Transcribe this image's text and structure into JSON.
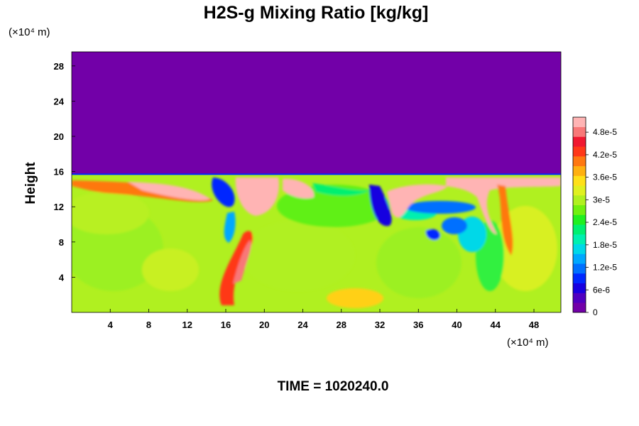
{
  "chart_data": {
    "type": "heatmap",
    "title": "H2S-g Mixing Ratio [kg/kg]",
    "xlabel": "",
    "ylabel": "Height",
    "x_unit": "(×10⁴ m)",
    "y_unit": "(×10⁴ m)",
    "xlim": [
      0,
      50.8
    ],
    "ylim": [
      0,
      29.6
    ],
    "x_ticks": [
      4,
      8,
      12,
      16,
      20,
      24,
      28,
      32,
      36,
      40,
      44,
      48
    ],
    "y_ticks": [
      4,
      8,
      12,
      16,
      20,
      24,
      28
    ],
    "colorbar": {
      "min": 0,
      "max": 5.2e-05,
      "tick_values": [
        0,
        6e-06,
        1.2e-05,
        1.8e-05,
        2.4e-05,
        3e-05,
        3.6e-05,
        4.2e-05,
        4.8e-05
      ],
      "tick_labels": [
        "0",
        "6e-6",
        "1.2e-5",
        "1.8e-5",
        "2.4e-5",
        "3e-5",
        "3.6e-5",
        "4.2e-5",
        "4.8e-5"
      ],
      "colors": [
        "#7200a8",
        "#5000c0",
        "#1800e0",
        "#0028ff",
        "#0070ff",
        "#00a8ff",
        "#00d8e8",
        "#00f0b0",
        "#00f070",
        "#20f020",
        "#70f010",
        "#b0f020",
        "#e0f020",
        "#ffe018",
        "#ffb010",
        "#ff7810",
        "#ff3818",
        "#f01830",
        "#f87878",
        "#ffb4b4"
      ]
    },
    "field_description": {
      "background_value": 0,
      "layer_top_height": 15.7,
      "typical_layer_value": 3.1e-05,
      "plume_max_value": 5e-05
    },
    "annotation": "TIME = 1020240.0"
  }
}
